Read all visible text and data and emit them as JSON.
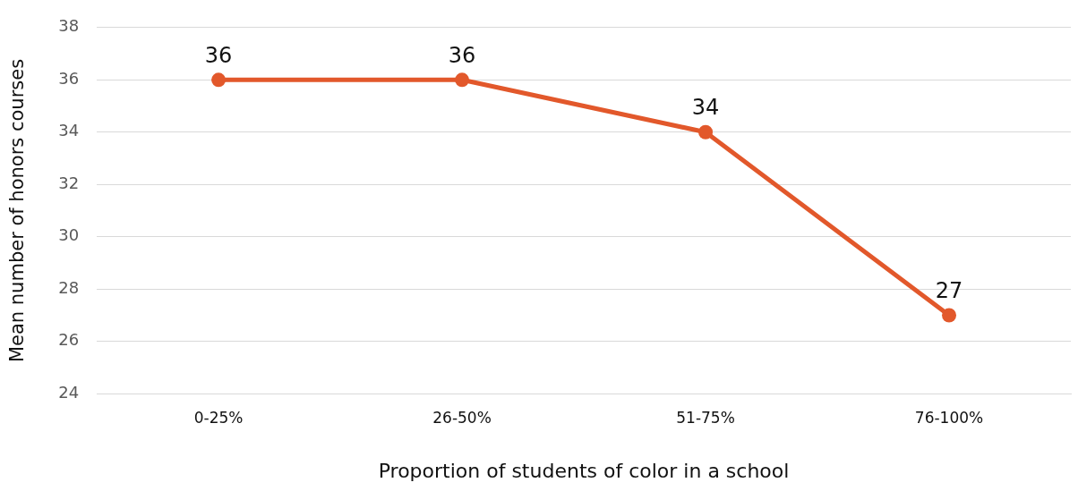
{
  "chart_data": {
    "type": "line",
    "xlabel": "Proportion of students of color in a school",
    "ylabel": "Mean number of honors courses",
    "categories": [
      "0-25%",
      "26-50%",
      "51-75%",
      "76-100%"
    ],
    "series": [
      {
        "color": "#e2582b",
        "values": [
          36,
          36,
          34,
          27
        ]
      }
    ],
    "ylim": [
      24,
      38
    ],
    "yticks": [
      24,
      26,
      28,
      30,
      32,
      34,
      36,
      38
    ],
    "grid": "y",
    "legend": false,
    "marker": "circle",
    "line_style": "solid",
    "data_labels": true
  }
}
